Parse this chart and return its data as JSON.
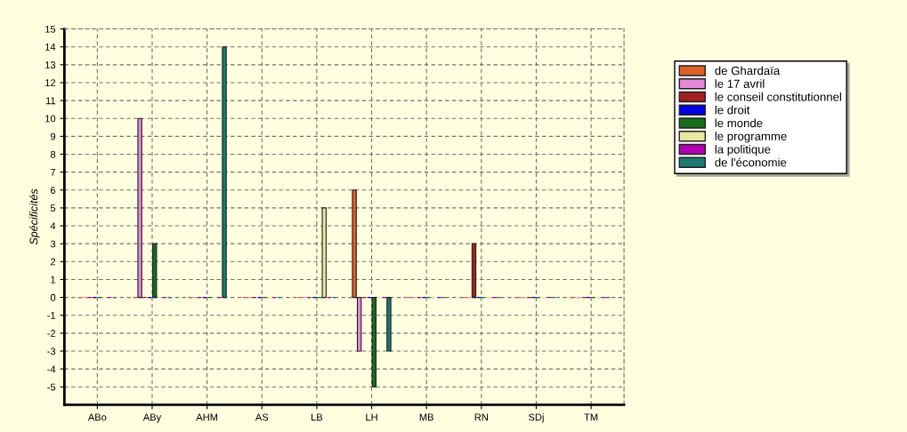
{
  "chart_data": {
    "type": "bar",
    "ylabel": "Spécificités",
    "categories": [
      "ABo",
      "ABy",
      "AHM",
      "AS",
      "LB",
      "LH",
      "MB",
      "RN",
      "SDj",
      "TM"
    ],
    "series": [
      {
        "name": "de Ghardaïa",
        "color": "#e0602a",
        "values": [
          0,
          0,
          0,
          0,
          0,
          6,
          0,
          0,
          0,
          0
        ]
      },
      {
        "name": "le 17 avril",
        "color": "#e888d8",
        "values": [
          0,
          10,
          0,
          0,
          0,
          -3,
          0,
          0,
          0,
          0
        ]
      },
      {
        "name": "le conseil constitutionnel",
        "color": "#a02020",
        "values": [
          0,
          0,
          0,
          0,
          0,
          0,
          0,
          3,
          0,
          0
        ]
      },
      {
        "name": "le droit",
        "color": "#0000e0",
        "values": [
          0,
          0,
          0,
          0,
          0,
          0,
          0,
          0,
          0,
          0
        ]
      },
      {
        "name": "le monde",
        "color": "#1a6e1a",
        "values": [
          0,
          3,
          0,
          0,
          0,
          -5,
          0,
          0,
          0,
          0
        ]
      },
      {
        "name": "le programme",
        "color": "#e8e8a0",
        "values": [
          0,
          0,
          0,
          0,
          5,
          0,
          0,
          0,
          0,
          0
        ]
      },
      {
        "name": "la politique",
        "color": "#b000b0",
        "values": [
          0,
          0,
          0,
          0,
          0,
          0,
          0,
          0,
          0,
          0
        ]
      },
      {
        "name": "de l'économie",
        "color": "#1a7a70",
        "values": [
          0,
          0,
          14,
          0,
          0,
          -3,
          0,
          0,
          0,
          0
        ]
      }
    ],
    "ylim": [
      -6,
      15
    ],
    "yticks": [
      -5,
      -4,
      -3,
      -2,
      -1,
      0,
      1,
      2,
      3,
      4,
      5,
      6,
      7,
      8,
      9,
      10,
      11,
      12,
      13,
      14,
      15
    ],
    "grid": true,
    "legend": "right"
  }
}
